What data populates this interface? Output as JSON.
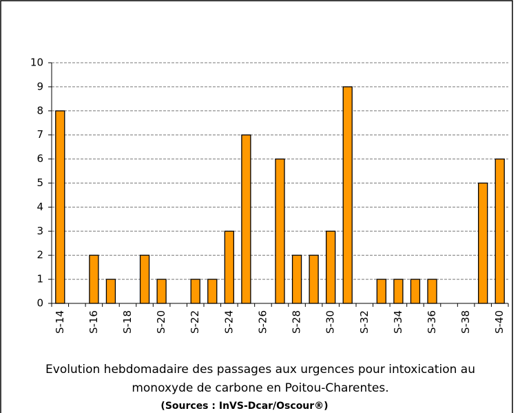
{
  "chart_data": {
    "type": "bar",
    "categories": [
      "S-14",
      null,
      "S-16",
      null,
      "S-18",
      null,
      "S-20",
      null,
      "S-22",
      null,
      "S-24",
      null,
      "S-26",
      null,
      "S-28",
      null,
      "S-30",
      null,
      "S-32",
      null,
      "S-34",
      null,
      "S-36",
      null,
      "S-38",
      null,
      "S-40"
    ],
    "values": [
      8,
      0,
      2,
      1,
      0,
      2,
      1,
      0,
      1,
      1,
      3,
      7,
      0,
      6,
      2,
      2,
      3,
      9,
      0,
      1,
      1,
      1,
      1,
      0,
      0,
      5,
      6
    ],
    "color": "#ff9900",
    "ylim": [
      0,
      10
    ],
    "yticks": [
      0,
      1,
      2,
      3,
      4,
      5,
      6,
      7,
      8,
      9,
      10
    ],
    "grid": true,
    "caption": [
      "Evolution hebdomadaire des passages aux urgences pour intoxication au",
      "monoxyde de carbone en Poitou-Charentes."
    ],
    "source": "(Sources : InVS-Dcar/Oscour®)"
  }
}
